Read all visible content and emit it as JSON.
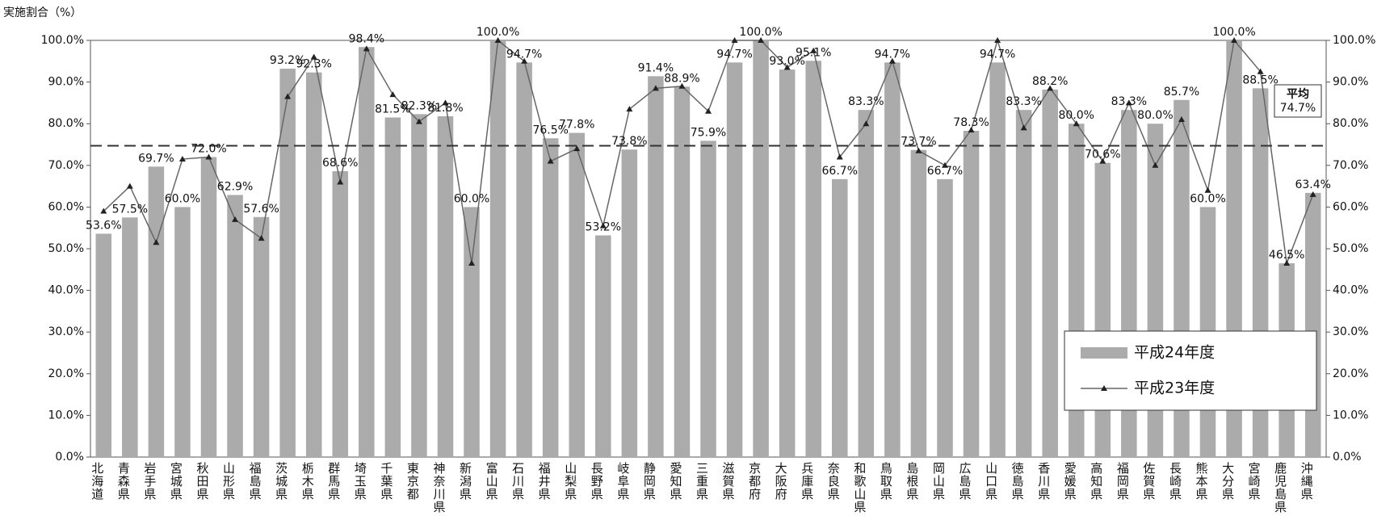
{
  "chart_data": {
    "type": "bar-line",
    "y_axis_label": "実施割合（%）",
    "categories": [
      "北海道",
      "青森県",
      "岩手県",
      "宮城県",
      "秋田県",
      "山形県",
      "福島県",
      "茨城県",
      "栃木県",
      "群馬県",
      "埼玉県",
      "千葉県",
      "東京都",
      "神奈川県",
      "新潟県",
      "富山県",
      "石川県",
      "福井県",
      "山梨県",
      "長野県",
      "岐阜県",
      "静岡県",
      "愛知県",
      "三重県",
      "滋賀県",
      "京都府",
      "大阪府",
      "兵庫県",
      "奈良県",
      "和歌山県",
      "鳥取県",
      "島根県",
      "岡山県",
      "広島県",
      "山口県",
      "徳島県",
      "香川県",
      "愛媛県",
      "高知県",
      "福岡県",
      "佐賀県",
      "長崎県",
      "熊本県",
      "大分県",
      "宮崎県",
      "鹿児島県",
      "沖縄県"
    ],
    "series": [
      {
        "name": "平成24年度",
        "type": "bar",
        "color": "#ababab",
        "values": [
          53.6,
          57.5,
          69.7,
          60.0,
          72.0,
          62.9,
          57.6,
          93.2,
          92.3,
          68.6,
          98.4,
          81.5,
          82.3,
          81.8,
          60.0,
          100.0,
          94.7,
          76.5,
          77.8,
          53.2,
          73.8,
          91.4,
          88.9,
          75.9,
          94.7,
          100.0,
          93.0,
          95.1,
          66.7,
          83.3,
          94.7,
          73.7,
          66.7,
          78.3,
          94.7,
          83.3,
          88.2,
          80.0,
          70.6,
          83.3,
          80.0,
          85.7,
          60.0,
          100.0,
          88.5,
          46.5,
          63.4
        ],
        "value_labels": [
          "53.6%",
          "57.5%",
          "69.7%",
          "60.0%",
          "72.0%",
          "62.9%",
          "57.6%",
          "93.2%",
          "92.3%",
          "68.6%",
          "98.4%",
          "81.5%",
          "82.3%",
          "81.8%",
          "60.0%",
          "100.0%",
          "94.7%",
          "76.5%",
          "77.8%",
          "53.2%",
          "73.8%",
          "91.4%",
          "88.9%",
          "75.9%",
          "94.7%",
          "100.0%",
          "93.0%",
          "95.1%",
          "66.7%",
          "83.3%",
          "94.7%",
          "73.7%",
          "66.7%",
          "78.3%",
          "94.7%",
          "83.3%",
          "88.2%",
          "80.0%",
          "70.6%",
          "83.3%",
          "80.0%",
          "85.7%",
          "60.0%",
          "100.0%",
          "88.5%",
          "46.5%",
          "63.4%"
        ]
      },
      {
        "name": "平成23年度",
        "type": "line",
        "color": "#666666",
        "axis": "y2",
        "values": [
          59,
          65,
          51.5,
          71.5,
          72,
          57,
          52.5,
          86.5,
          96,
          66,
          98,
          87,
          80.5,
          85,
          46.5,
          100,
          95,
          71,
          74,
          55.5,
          83.5,
          88.5,
          89,
          83,
          100,
          100,
          93.5,
          97.5,
          72,
          80,
          95,
          73.5,
          70,
          78.5,
          100,
          79,
          88.5,
          80,
          71,
          85,
          70,
          81,
          64,
          100,
          92.5,
          46.5,
          63
        ]
      }
    ],
    "average": {
      "value": 74.7,
      "label": "平均",
      "value_label": "74.7%"
    },
    "ylim": [
      0,
      100
    ],
    "yticks": [
      {
        "value": 0,
        "label": "0.0%"
      },
      {
        "value": 10,
        "label": "10.0%"
      },
      {
        "value": 20,
        "label": "20.0%"
      },
      {
        "value": 30,
        "label": "30.0%"
      },
      {
        "value": 40,
        "label": "40.0%"
      },
      {
        "value": 50,
        "label": "50.0%"
      },
      {
        "value": 60,
        "label": "60.0%"
      },
      {
        "value": 70,
        "label": "70.0%"
      },
      {
        "value": 80,
        "label": "80.0%"
      },
      {
        "value": 90,
        "label": "90.0%"
      },
      {
        "value": 100,
        "label": "100.0%"
      }
    ],
    "y2lim": [
      0,
      100
    ],
    "y2ticks": [
      {
        "value": 0,
        "label": "0.0%"
      },
      {
        "value": 10,
        "label": "10.0%"
      },
      {
        "value": 20,
        "label": "20.0%"
      },
      {
        "value": 30,
        "label": "30.0%"
      },
      {
        "value": 40,
        "label": "40.0%"
      },
      {
        "value": 50,
        "label": "50.0%"
      },
      {
        "value": 60,
        "label": "60.0%"
      },
      {
        "value": 70,
        "label": "70.0%"
      },
      {
        "value": 80,
        "label": "80.0%"
      },
      {
        "value": 90,
        "label": "90.0%"
      },
      {
        "value": 100,
        "label": "100.0%"
      }
    ]
  }
}
